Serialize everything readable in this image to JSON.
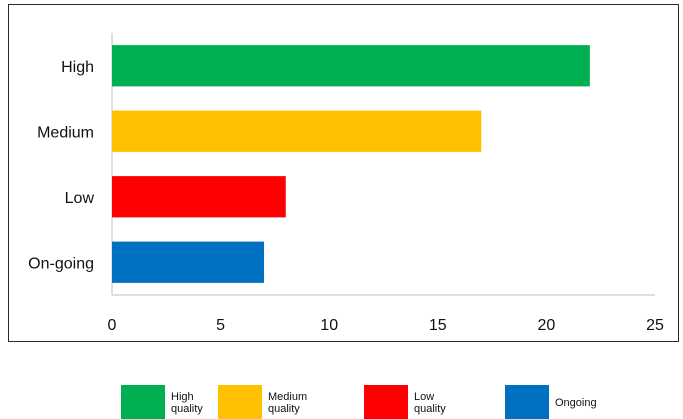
{
  "chart_data": {
    "type": "bar",
    "orientation": "horizontal",
    "categories": [
      "High",
      "Medium",
      "Low",
      "On-going"
    ],
    "values": [
      22,
      17,
      8,
      7
    ],
    "colors": [
      "#00b050",
      "#ffc000",
      "#ff0000",
      "#0070c0"
    ],
    "xlim": [
      0,
      25
    ],
    "xticks": [
      0,
      5,
      10,
      15,
      20,
      25
    ],
    "grid": false,
    "legend_position": "bottom"
  },
  "legend": {
    "items": [
      {
        "label": "High\nquality",
        "color": "#00b050"
      },
      {
        "label": "Medium\nquality",
        "color": "#ffc000"
      },
      {
        "label": "Low\nquality",
        "color": "#ff0000"
      },
      {
        "label": "Ongoing",
        "color": "#0070c0"
      }
    ]
  }
}
